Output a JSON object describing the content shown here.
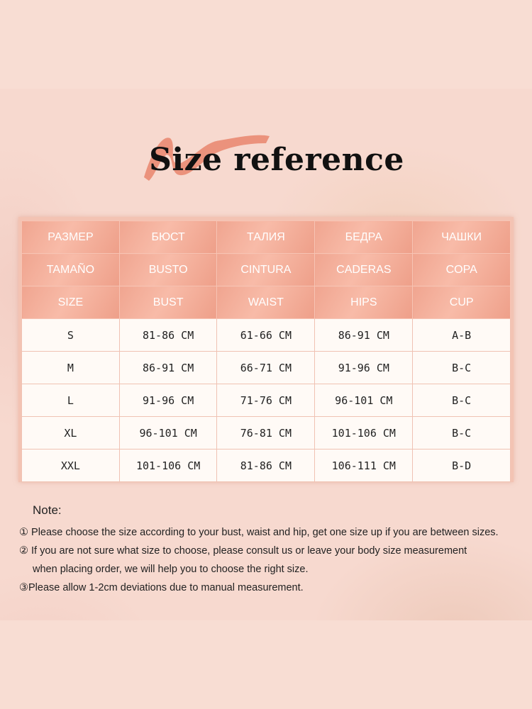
{
  "title": "Size reference",
  "colors": {
    "header": "#f0a590",
    "brush": "#e98a72",
    "cell": "#fffaf6"
  },
  "table": {
    "header_rows": [
      [
        "РАЗМЕР",
        "БЮСТ",
        "ТАЛИЯ",
        "БЕДРА",
        "ЧАШКИ"
      ],
      [
        "TAMAÑO",
        "BUSTO",
        "CINTURA",
        "CADERAS",
        "COPA"
      ],
      [
        "SIZE",
        "BUST",
        "WAIST",
        "HIPS",
        "CUP"
      ]
    ],
    "rows": [
      [
        "S",
        "81-86 CM",
        "61-66 CM",
        "86-91 CM",
        "A-B"
      ],
      [
        "M",
        "86-91 CM",
        "66-71 CM",
        "91-96 CM",
        "B-C"
      ],
      [
        "L",
        "91-96 CM",
        "71-76 CM",
        "96-101 CM",
        "B-C"
      ],
      [
        "XL",
        "96-101 CM",
        "76-81 CM",
        "101-106 CM",
        "B-C"
      ],
      [
        "XXL",
        "101-106 CM",
        "81-86 CM",
        "106-111 CM",
        "B-D"
      ]
    ]
  },
  "note": {
    "label": "Note:",
    "lines": [
      "① Please choose the size according to your bust, waist and hip, get one size up if you are between sizes.",
      "② If you are not sure what size to choose, please consult us or leave your body size measurement",
      "when placing order, we will help you to choose the right size.",
      "③Please allow 1-2cm deviations due to manual measurement."
    ]
  }
}
